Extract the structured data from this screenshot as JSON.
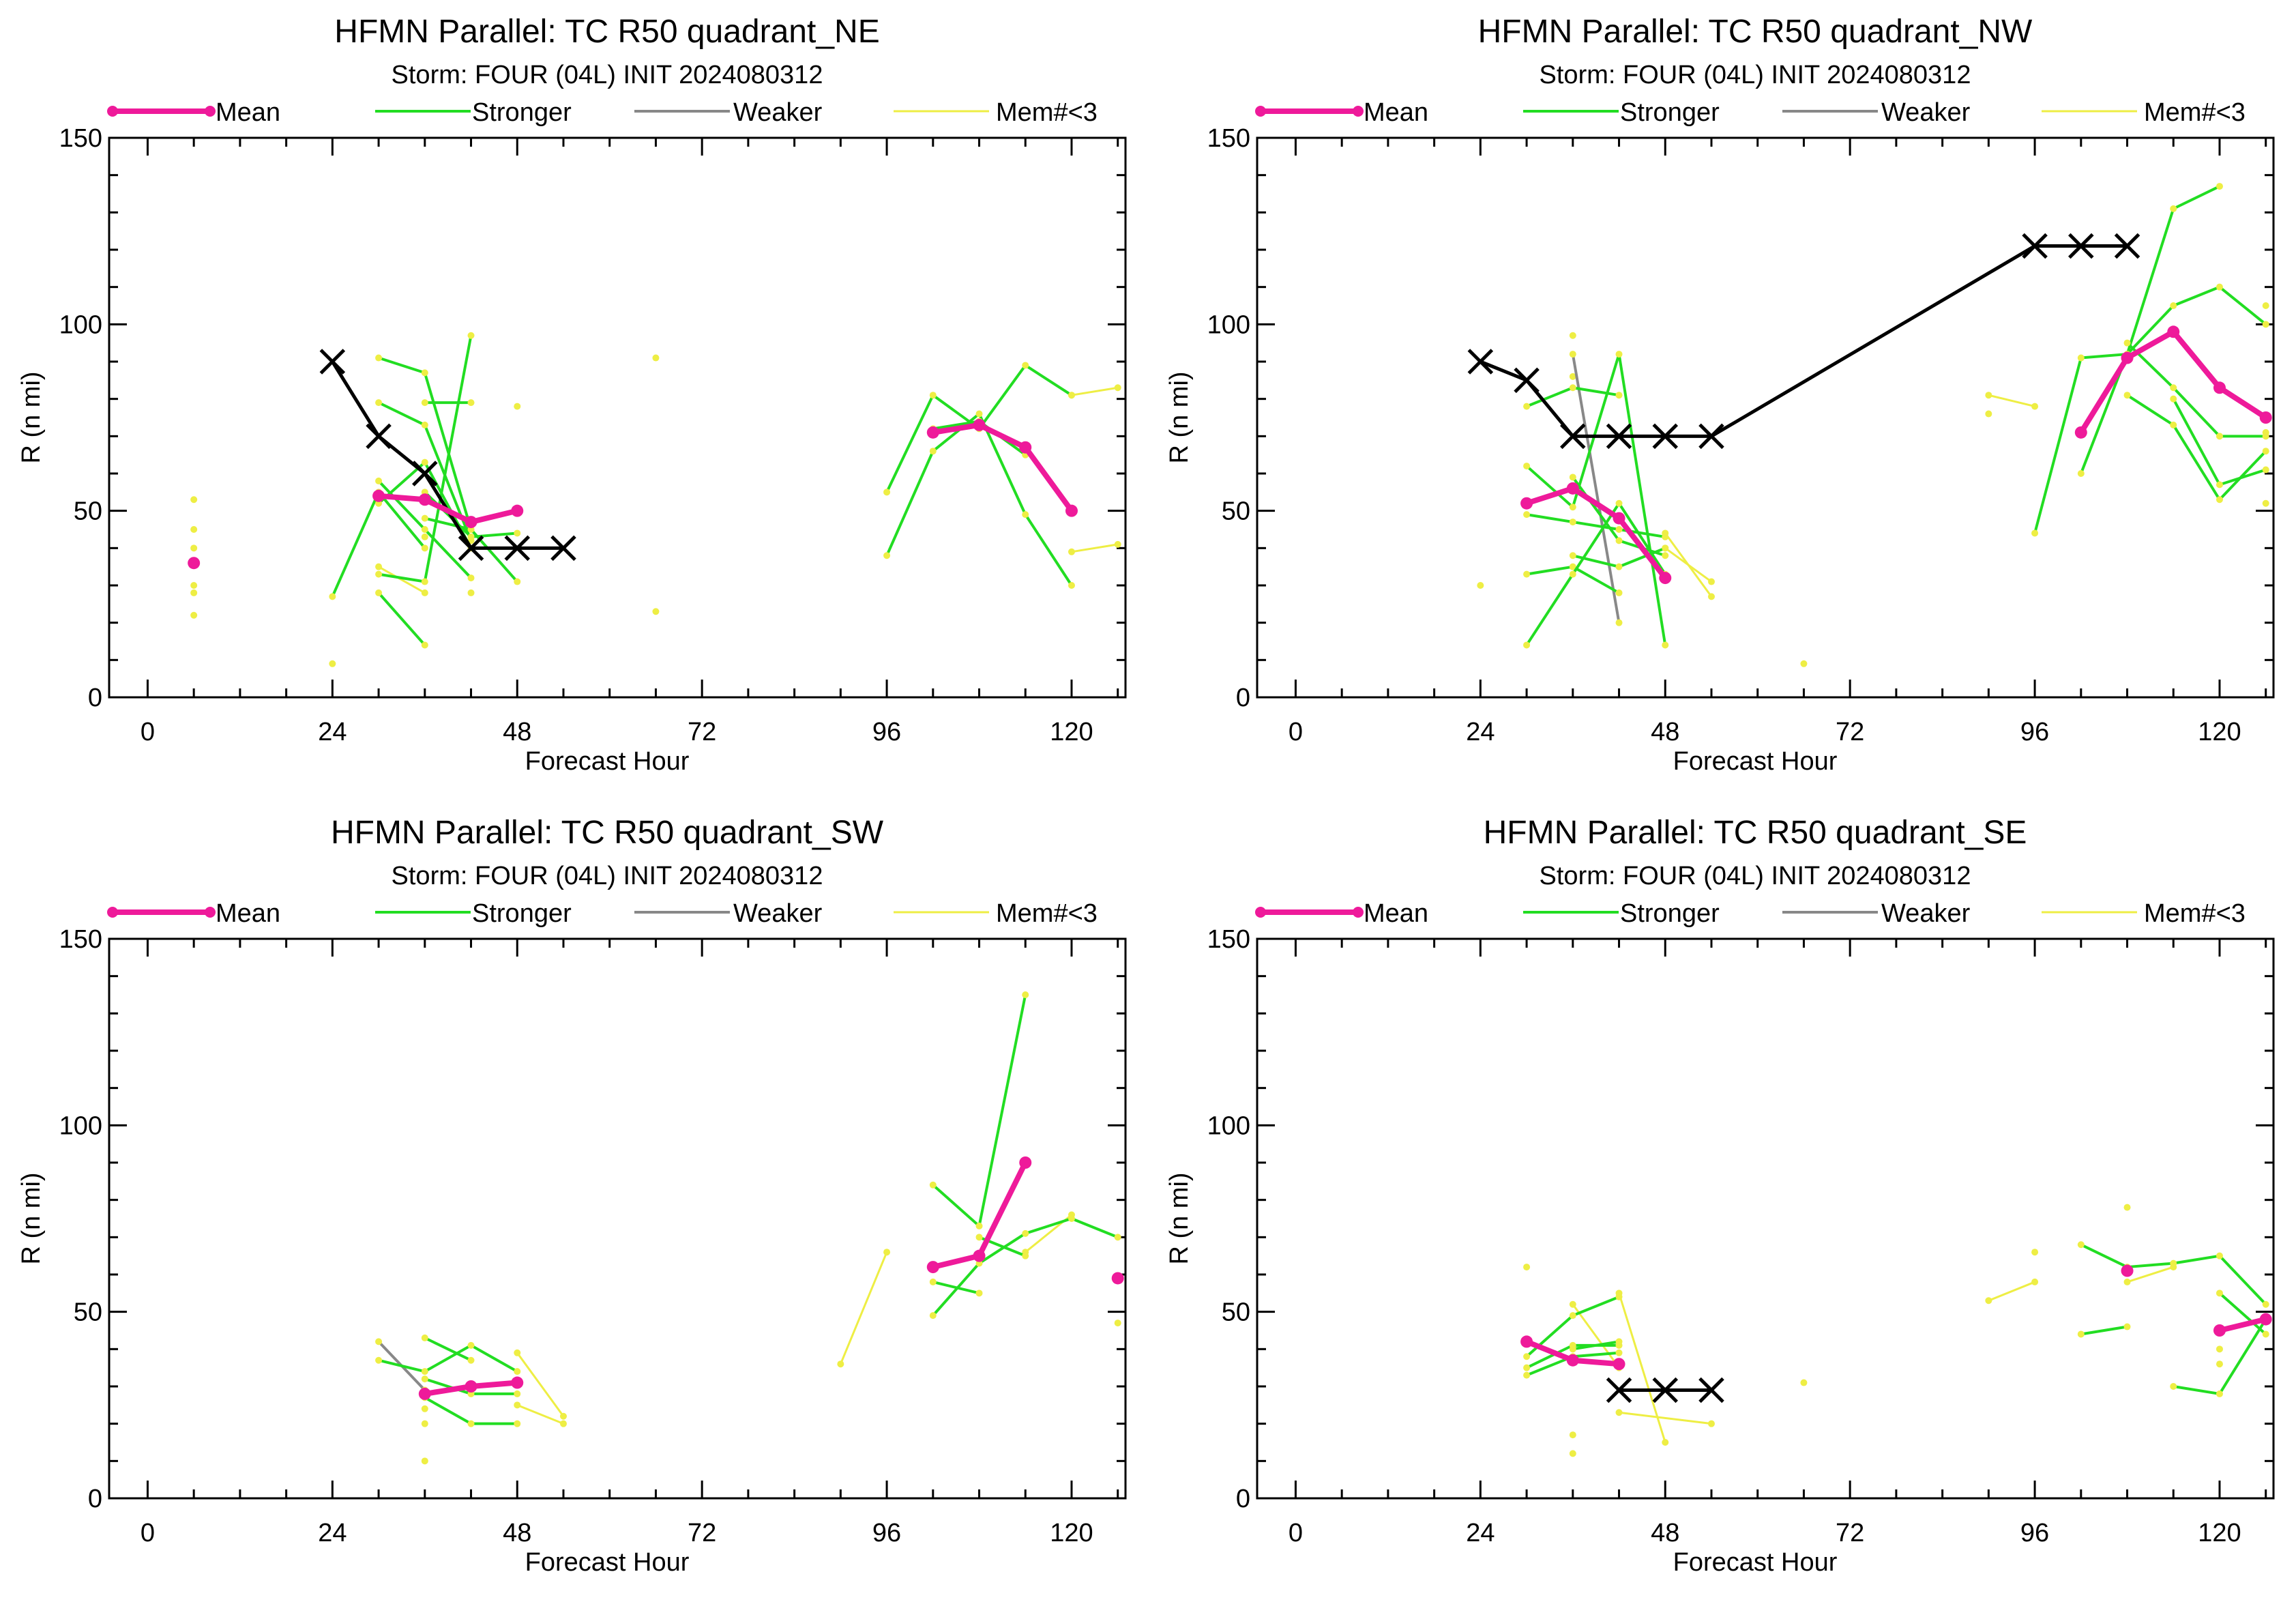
{
  "xlabel": "Forecast Hour",
  "ylabel": "R (n mi)",
  "xlim": [
    -5,
    127
  ],
  "ylim": [
    0,
    150
  ],
  "xticks": [
    "0",
    "24",
    "48",
    "72",
    "96",
    "120"
  ],
  "yticks": [
    "0",
    "50",
    "100",
    "150"
  ],
  "legend": {
    "mean": "Mean",
    "stronger": "Stronger",
    "weaker": "Weaker",
    "few": "Mem#<3"
  },
  "colors": {
    "mean": "#ee1a9a",
    "stronger": "#22dd22",
    "weaker": "#888888",
    "few": "#eeee44",
    "best_track": "#000000"
  },
  "chart_data": [
    {
      "type": "line",
      "title": "HFMN Parallel: TC  R50 quadrant_NE",
      "subtitle": "Storm: FOUR (04L) INIT 2024080312",
      "xlabel": "Forecast Hour",
      "ylabel": "R (n mi)",
      "xlim": [
        -5,
        127
      ],
      "ylim": [
        0,
        150
      ],
      "grid": false,
      "legend_position": "top",
      "best_track": [
        [
          24,
          90
        ],
        [
          30,
          70
        ],
        [
          36,
          60
        ],
        [
          42,
          40
        ],
        [
          48,
          40
        ],
        [
          54,
          40
        ]
      ],
      "mean": [
        [
          [
            6,
            36
          ]
        ],
        [
          [
            30,
            54
          ],
          [
            36,
            53
          ],
          [
            42,
            47
          ],
          [
            48,
            50
          ]
        ],
        [
          [
            102,
            71
          ],
          [
            108,
            73
          ],
          [
            114,
            67
          ],
          [
            120,
            50
          ]
        ]
      ],
      "stronger": [
        [
          [
            24,
            27
          ],
          [
            30,
            55
          ],
          [
            36,
            40
          ]
        ],
        [
          [
            30,
            91
          ],
          [
            36,
            87
          ],
          [
            42,
            45
          ]
        ],
        [
          [
            30,
            79
          ],
          [
            36,
            73
          ],
          [
            42,
            42
          ]
        ],
        [
          [
            30,
            58
          ],
          [
            36,
            45
          ],
          [
            42,
            32
          ]
        ],
        [
          [
            30,
            52
          ],
          [
            36,
            63
          ],
          [
            42,
            40
          ]
        ],
        [
          [
            30,
            33
          ],
          [
            36,
            31
          ],
          [
            42,
            97
          ]
        ],
        [
          [
            30,
            28
          ],
          [
            36,
            14
          ]
        ],
        [
          [
            36,
            79
          ],
          [
            42,
            79
          ]
        ],
        [
          [
            36,
            48
          ],
          [
            42,
            45
          ],
          [
            48,
            31
          ]
        ],
        [
          [
            36,
            55
          ],
          [
            42,
            43
          ],
          [
            48,
            44
          ]
        ],
        [
          [
            96,
            55
          ],
          [
            102,
            81
          ],
          [
            108,
            72
          ],
          [
            114,
            89
          ],
          [
            120,
            81
          ]
        ],
        [
          [
            96,
            38
          ],
          [
            102,
            66
          ],
          [
            108,
            76
          ],
          [
            114,
            49
          ],
          [
            120,
            30
          ]
        ],
        [
          [
            102,
            72
          ],
          [
            108,
            74
          ],
          [
            114,
            65
          ]
        ]
      ],
      "weaker": [],
      "few": [
        [
          [
            6,
            53
          ]
        ],
        [
          [
            6,
            45
          ]
        ],
        [
          [
            6,
            40
          ]
        ],
        [
          [
            6,
            30
          ]
        ],
        [
          [
            6,
            28
          ]
        ],
        [
          [
            6,
            22
          ]
        ],
        [
          [
            24,
            9
          ]
        ],
        [
          [
            30,
            35
          ],
          [
            36,
            28
          ]
        ],
        [
          [
            36,
            43
          ]
        ],
        [
          [
            48,
            78
          ]
        ],
        [
          [
            42,
            28
          ]
        ],
        [
          [
            66,
            91
          ]
        ],
        [
          [
            66,
            23
          ]
        ],
        [
          [
            120,
            81
          ],
          [
            126,
            83
          ]
        ],
        [
          [
            120,
            39
          ],
          [
            126,
            41
          ]
        ]
      ]
    },
    {
      "type": "line",
      "title": "HFMN Parallel: TC  R50 quadrant_NW",
      "subtitle": "Storm: FOUR (04L) INIT 2024080312",
      "xlabel": "Forecast Hour",
      "ylabel": "R (n mi)",
      "xlim": [
        -5,
        127
      ],
      "ylim": [
        0,
        150
      ],
      "grid": false,
      "legend_position": "top",
      "best_track": [
        [
          24,
          90
        ],
        [
          30,
          85
        ],
        [
          36,
          70
        ],
        [
          42,
          70
        ],
        [
          48,
          70
        ],
        [
          54,
          70
        ],
        [
          96,
          121
        ],
        [
          102,
          121
        ],
        [
          108,
          121
        ]
      ],
      "mean": [
        [
          [
            30,
            52
          ],
          [
            36,
            56
          ],
          [
            42,
            48
          ],
          [
            48,
            32
          ]
        ],
        [
          [
            102,
            71
          ],
          [
            108,
            91
          ],
          [
            114,
            98
          ],
          [
            120,
            83
          ],
          [
            126,
            75
          ]
        ]
      ],
      "stronger": [
        [
          [
            30,
            78
          ],
          [
            36,
            83
          ],
          [
            42,
            81
          ]
        ],
        [
          [
            30,
            62
          ],
          [
            36,
            51
          ],
          [
            42,
            92
          ],
          [
            48,
            14
          ]
        ],
        [
          [
            30,
            49
          ],
          [
            36,
            47
          ],
          [
            42,
            45
          ],
          [
            48,
            43
          ]
        ],
        [
          [
            30,
            33
          ],
          [
            36,
            35
          ],
          [
            42,
            28
          ]
        ],
        [
          [
            30,
            14
          ],
          [
            36,
            33
          ],
          [
            42,
            52
          ],
          [
            48,
            33
          ]
        ],
        [
          [
            36,
            38
          ],
          [
            42,
            35
          ],
          [
            48,
            40
          ]
        ],
        [
          [
            36,
            59
          ],
          [
            42,
            42
          ],
          [
            48,
            38
          ]
        ],
        [
          [
            96,
            44
          ],
          [
            102,
            91
          ],
          [
            108,
            92
          ],
          [
            114,
            131
          ],
          [
            120,
            137
          ]
        ],
        [
          [
            102,
            60
          ],
          [
            108,
            92
          ],
          [
            114,
            105
          ],
          [
            120,
            110
          ],
          [
            126,
            100
          ]
        ],
        [
          [
            108,
            81
          ],
          [
            114,
            73
          ],
          [
            120,
            53
          ],
          [
            126,
            66
          ]
        ],
        [
          [
            108,
            95
          ],
          [
            114,
            83
          ],
          [
            120,
            70
          ],
          [
            126,
            70
          ]
        ],
        [
          [
            114,
            80
          ],
          [
            120,
            57
          ],
          [
            126,
            61
          ]
        ]
      ],
      "weaker": [
        [
          [
            36,
            92
          ],
          [
            42,
            20
          ]
        ]
      ],
      "few": [
        [
          [
            24,
            30
          ]
        ],
        [
          [
            36,
            97
          ]
        ],
        [
          [
            36,
            86
          ]
        ],
        [
          [
            48,
            44
          ],
          [
            54,
            27
          ]
        ],
        [
          [
            48,
            40
          ],
          [
            54,
            31
          ]
        ],
        [
          [
            66,
            9
          ]
        ],
        [
          [
            90,
            81
          ],
          [
            96,
            78
          ]
        ],
        [
          [
            90,
            76
          ]
        ],
        [
          [
            126,
            105
          ]
        ],
        [
          [
            126,
            71
          ]
        ],
        [
          [
            126,
            52
          ]
        ]
      ]
    },
    {
      "type": "line",
      "title": "HFMN Parallel: TC  R50 quadrant_SW",
      "subtitle": "Storm: FOUR (04L) INIT 2024080312",
      "xlabel": "Forecast Hour",
      "ylabel": "R (n mi)",
      "xlim": [
        -5,
        127
      ],
      "ylim": [
        0,
        150
      ],
      "grid": false,
      "legend_position": "top",
      "best_track": [],
      "mean": [
        [
          [
            36,
            28
          ],
          [
            42,
            30
          ],
          [
            48,
            31
          ]
        ],
        [
          [
            102,
            62
          ],
          [
            108,
            65
          ],
          [
            114,
            90
          ]
        ],
        [
          [
            126,
            59
          ]
        ]
      ],
      "stronger": [
        [
          [
            30,
            37
          ],
          [
            36,
            34
          ],
          [
            42,
            41
          ],
          [
            48,
            34
          ]
        ],
        [
          [
            36,
            43
          ],
          [
            42,
            37
          ]
        ],
        [
          [
            36,
            27
          ],
          [
            42,
            20
          ],
          [
            48,
            20
          ]
        ],
        [
          [
            36,
            32
          ],
          [
            42,
            28
          ],
          [
            48,
            28
          ]
        ],
        [
          [
            102,
            84
          ],
          [
            108,
            73
          ],
          [
            114,
            135
          ]
        ],
        [
          [
            102,
            49
          ],
          [
            108,
            63
          ],
          [
            114,
            71
          ],
          [
            120,
            75
          ],
          [
            126,
            70
          ]
        ],
        [
          [
            102,
            58
          ],
          [
            108,
            55
          ]
        ],
        [
          [
            108,
            70
          ],
          [
            114,
            65
          ]
        ]
      ],
      "weaker": [
        [
          [
            30,
            42
          ],
          [
            36,
            29
          ]
        ]
      ],
      "few": [
        [
          [
            36,
            10
          ]
        ],
        [
          [
            36,
            20
          ]
        ],
        [
          [
            36,
            24
          ]
        ],
        [
          [
            48,
            39
          ],
          [
            54,
            22
          ]
        ],
        [
          [
            48,
            25
          ],
          [
            54,
            20
          ]
        ],
        [
          [
            90,
            36
          ],
          [
            96,
            66
          ]
        ],
        [
          [
            114,
            66
          ],
          [
            120,
            76
          ]
        ],
        [
          [
            126,
            47
          ]
        ]
      ]
    },
    {
      "type": "line",
      "title": "HFMN Parallel: TC  R50 quadrant_SE",
      "subtitle": "Storm: FOUR (04L) INIT 2024080312",
      "xlabel": "Forecast Hour",
      "ylabel": "R (n mi)",
      "xlim": [
        -5,
        127
      ],
      "ylim": [
        0,
        150
      ],
      "grid": false,
      "legend_position": "top",
      "best_track": [
        [
          42,
          29
        ],
        [
          48,
          29
        ],
        [
          54,
          29
        ]
      ],
      "mean": [
        [
          [
            30,
            42
          ],
          [
            36,
            37
          ],
          [
            42,
            36
          ]
        ],
        [
          [
            108,
            61
          ]
        ],
        [
          [
            120,
            45
          ],
          [
            126,
            48
          ]
        ]
      ],
      "stronger": [
        [
          [
            30,
            38
          ],
          [
            36,
            49
          ],
          [
            42,
            54
          ]
        ],
        [
          [
            30,
            35
          ],
          [
            36,
            41
          ],
          [
            42,
            41
          ]
        ],
        [
          [
            30,
            33
          ],
          [
            36,
            38
          ],
          [
            42,
            39
          ]
        ],
        [
          [
            36,
            40
          ],
          [
            42,
            42
          ]
        ],
        [
          [
            102,
            68
          ],
          [
            108,
            62
          ],
          [
            114,
            63
          ],
          [
            120,
            65
          ],
          [
            126,
            52
          ]
        ],
        [
          [
            102,
            44
          ],
          [
            108,
            46
          ]
        ],
        [
          [
            114,
            30
          ],
          [
            120,
            28
          ],
          [
            126,
            48
          ]
        ],
        [
          [
            120,
            55
          ],
          [
            126,
            44
          ]
        ]
      ],
      "weaker": [],
      "few": [
        [
          [
            30,
            62
          ]
        ],
        [
          [
            36,
            52
          ],
          [
            42,
            35
          ]
        ],
        [
          [
            36,
            17
          ]
        ],
        [
          [
            36,
            12
          ]
        ],
        [
          [
            42,
            55
          ],
          [
            48,
            15
          ]
        ],
        [
          [
            42,
            23
          ],
          [
            54,
            20
          ]
        ],
        [
          [
            66,
            31
          ]
        ],
        [
          [
            90,
            53
          ],
          [
            96,
            58
          ]
        ],
        [
          [
            96,
            66
          ]
        ],
        [
          [
            108,
            78
          ]
        ],
        [
          [
            108,
            58
          ],
          [
            114,
            62
          ]
        ],
        [
          [
            120,
            40
          ]
        ],
        [
          [
            120,
            36
          ]
        ]
      ]
    }
  ]
}
